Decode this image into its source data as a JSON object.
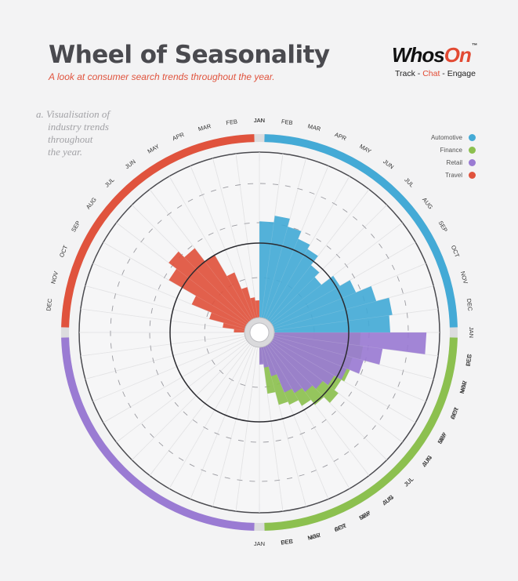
{
  "header": {
    "title": "Wheel of Seasonality",
    "subtitle": "A look at consumer search trends throughout the year."
  },
  "brand": {
    "logo_part1": "Whos",
    "logo_part2": "On",
    "logo_tm": "™",
    "tagline_left": "Track - ",
    "tagline_mid": "Chat",
    "tagline_right": " - Engage"
  },
  "annotation": {
    "line1": "a. Visualisation of",
    "line2": "industry trends",
    "line3": "throughout",
    "line4": "the year."
  },
  "chart_data": {
    "type": "radial-area",
    "months": [
      "JAN",
      "FEB",
      "MAR",
      "APR",
      "MAY",
      "JUN",
      "JUL",
      "AUG",
      "SEP",
      "OCT",
      "NOV",
      "DEC"
    ],
    "series": [
      {
        "name": "Automotive",
        "color": "#44aad6",
        "quadrant": "top-right",
        "values": [
          0.58,
          0.62,
          0.57,
          0.52,
          0.49,
          0.42,
          0.38,
          0.47,
          0.54,
          0.64,
          0.72,
          0.7
        ]
      },
      {
        "name": "Finance",
        "color": "#8cc04f",
        "quadrant": "bottom-right",
        "values": [
          0.52,
          0.54,
          0.49,
          0.5,
          0.48,
          0.51,
          0.46,
          0.42,
          0.38,
          0.36,
          0.28,
          0.09
        ]
      },
      {
        "name": "Retail",
        "color": "#9a7bd3",
        "quadrant": "bottom-left",
        "values": [
          0.1,
          0.12,
          0.18,
          0.3,
          0.33,
          0.36,
          0.39,
          0.43,
          0.48,
          0.56,
          0.66,
          0.92
        ]
      },
      {
        "name": "Travel",
        "color": "#e0533d",
        "quadrant": "top-left",
        "values": [
          0.1,
          0.12,
          0.19,
          0.3,
          0.45,
          0.55,
          0.6,
          0.54,
          0.35,
          0.22,
          0.13,
          0.06
        ]
      }
    ]
  }
}
